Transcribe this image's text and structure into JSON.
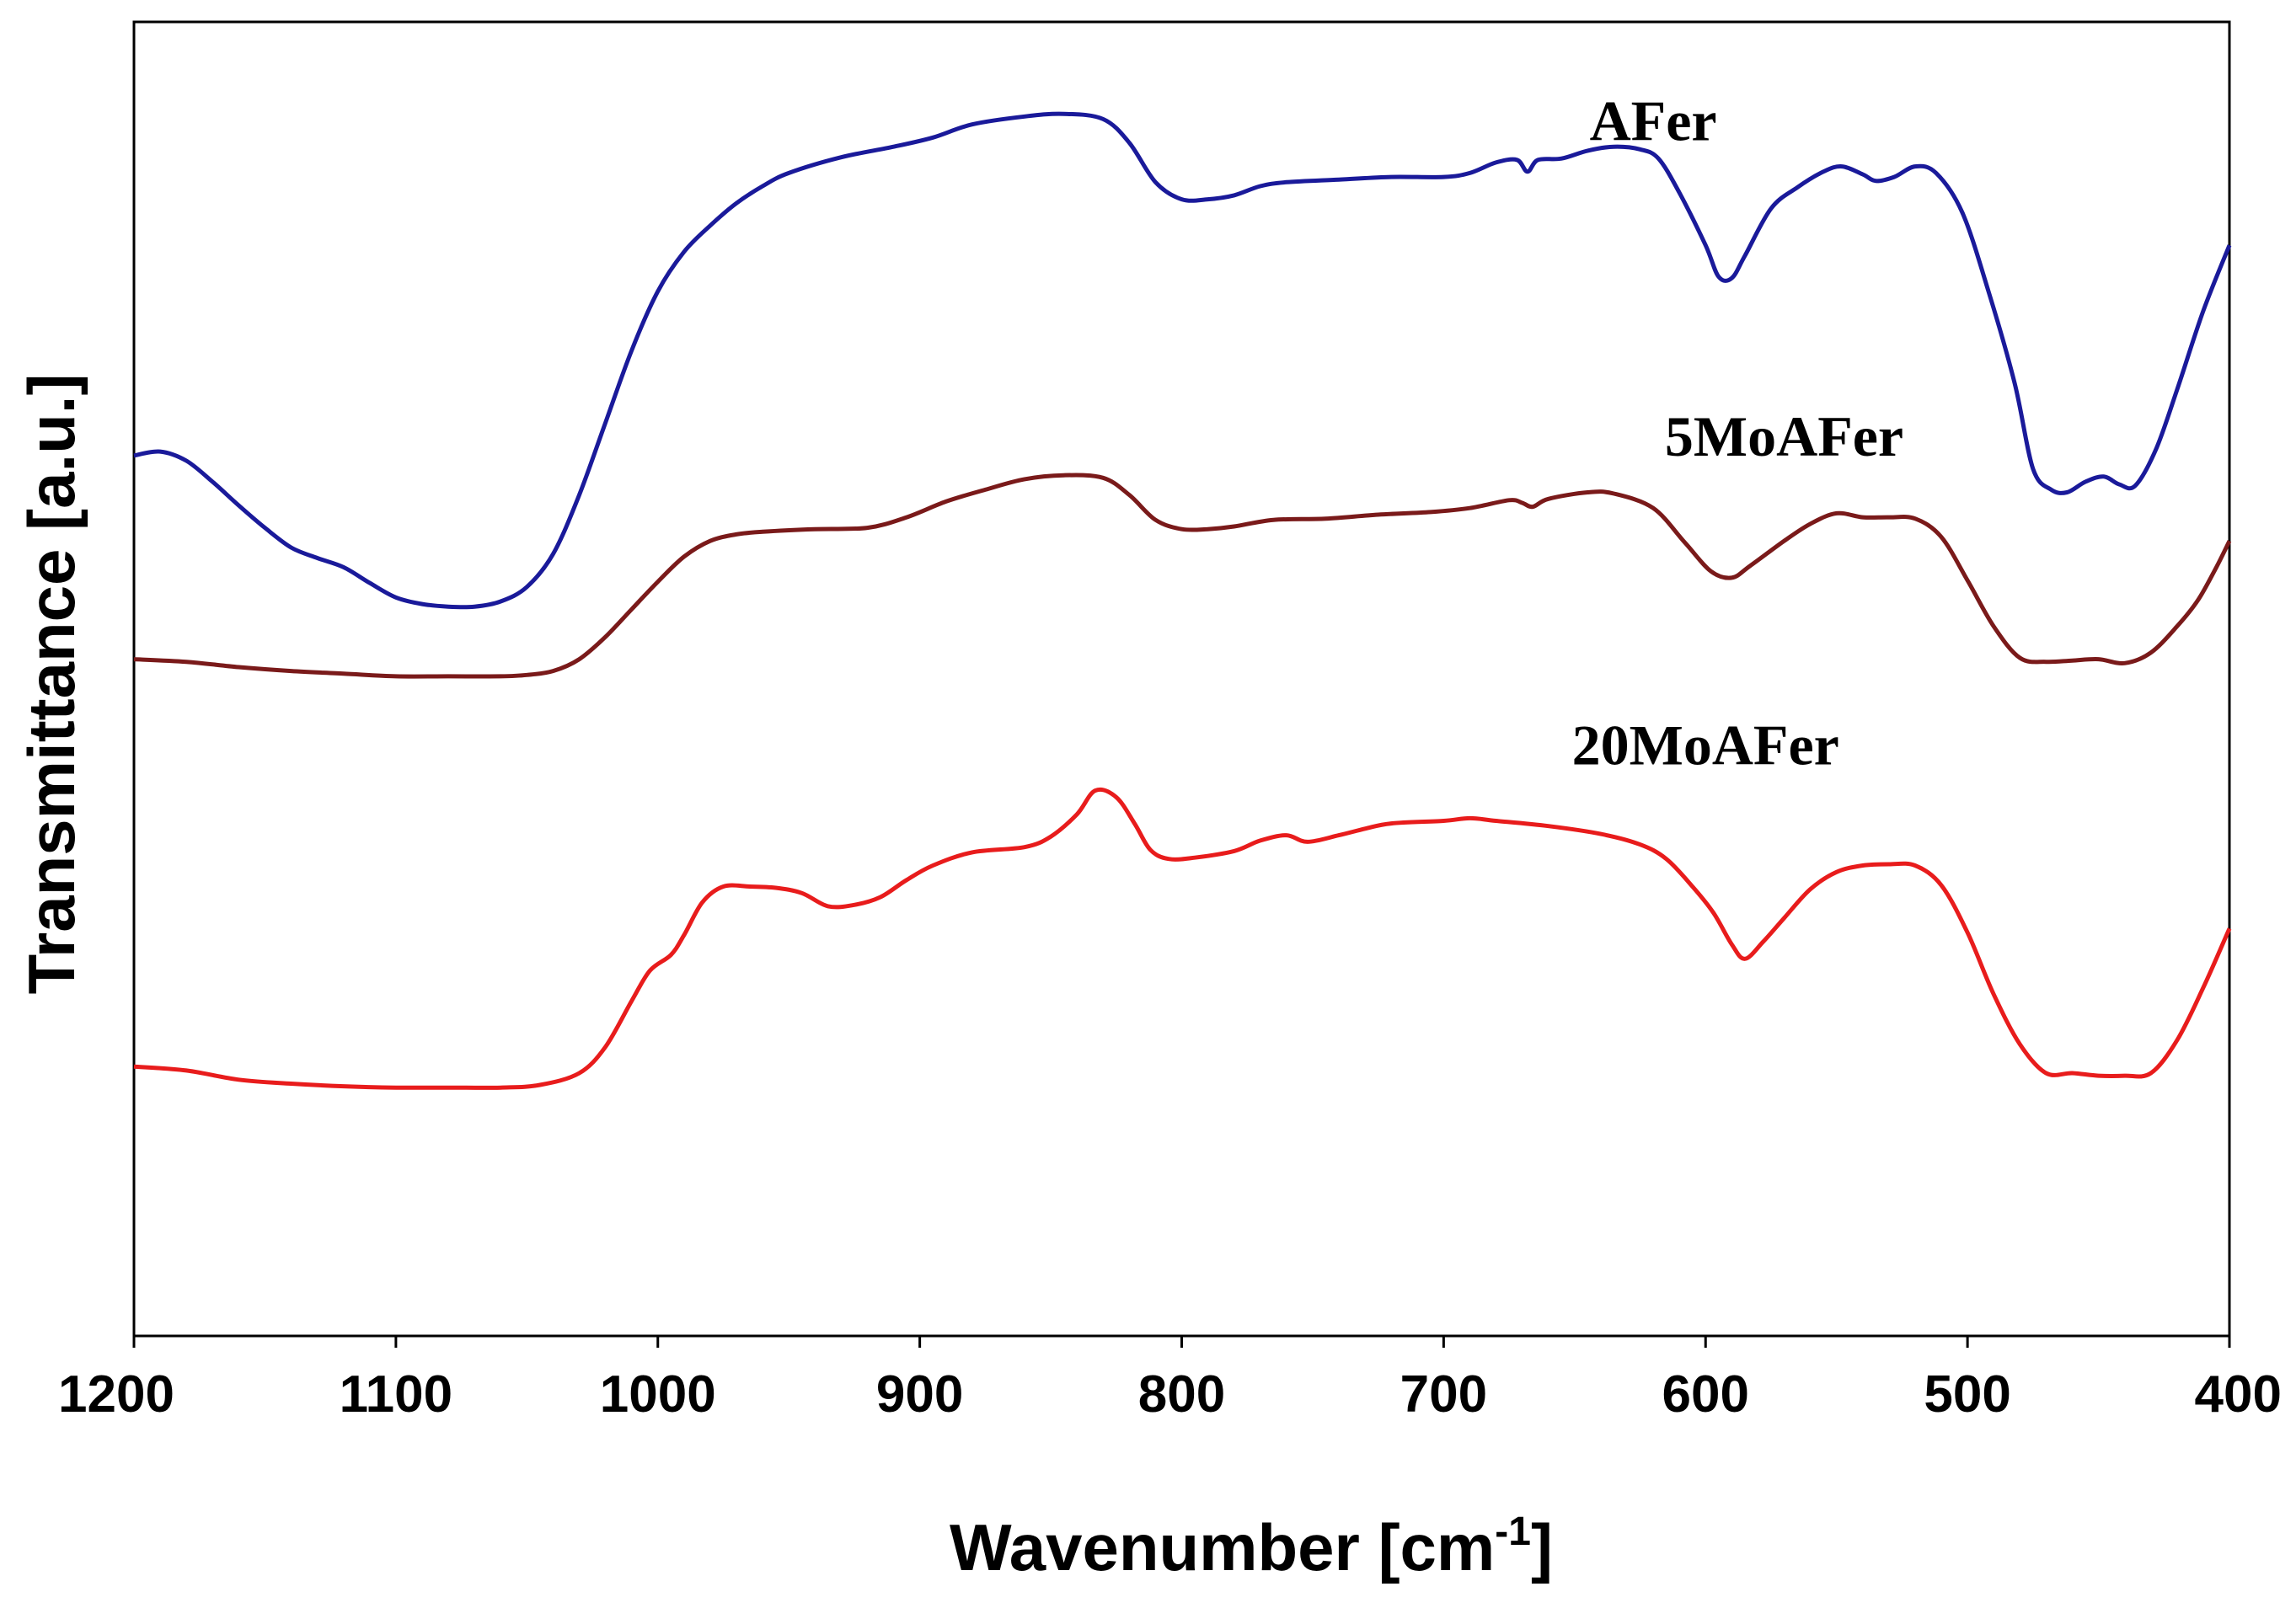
{
  "chart_data": {
    "type": "line",
    "title": "",
    "xlabel": "Wavenumber [cm",
    "xlabel_sup": "-1",
    "xlabel_close": "]",
    "ylabel": "Transmittance [a.u.]",
    "xlim": [
      1200,
      400
    ],
    "ylim": [
      0,
      100
    ],
    "x_reversed": true,
    "xticks": [
      1200,
      1100,
      1000,
      900,
      800,
      700,
      600,
      500,
      400
    ],
    "xtick_labels": [
      "1200",
      "1100",
      "1000",
      "900",
      "800",
      "700",
      "600",
      "500",
      "400"
    ],
    "yticks_shown": false,
    "grid": false,
    "legend": "none",
    "series": [
      {
        "name": "AFer",
        "color": "#1a1a9a",
        "label_at": [
          620,
          91
        ],
        "points": [
          [
            1200,
            67
          ],
          [
            1190,
            67.3
          ],
          [
            1180,
            66.6
          ],
          [
            1170,
            65
          ],
          [
            1160,
            63.2
          ],
          [
            1150,
            61.5
          ],
          [
            1140,
            60
          ],
          [
            1130,
            59.2
          ],
          [
            1120,
            58.5
          ],
          [
            1110,
            57.3
          ],
          [
            1100,
            56.2
          ],
          [
            1090,
            55.7
          ],
          [
            1080,
            55.5
          ],
          [
            1070,
            55.5
          ],
          [
            1060,
            55.9
          ],
          [
            1050,
            57
          ],
          [
            1040,
            59.5
          ],
          [
            1030,
            64
          ],
          [
            1020,
            69.5
          ],
          [
            1010,
            75
          ],
          [
            1000,
            79.5
          ],
          [
            990,
            82.5
          ],
          [
            980,
            84.5
          ],
          [
            970,
            86.2
          ],
          [
            960,
            87.5
          ],
          [
            950,
            88.5
          ],
          [
            930,
            89.7
          ],
          [
            910,
            90.5
          ],
          [
            895,
            91.2
          ],
          [
            880,
            92.2
          ],
          [
            860,
            92.8
          ],
          [
            845,
            93
          ],
          [
            830,
            92.6
          ],
          [
            820,
            90.8
          ],
          [
            810,
            87.8
          ],
          [
            800,
            86.5
          ],
          [
            790,
            86.5
          ],
          [
            780,
            86.8
          ],
          [
            770,
            87.5
          ],
          [
            760,
            87.8
          ],
          [
            740,
            88
          ],
          [
            720,
            88.2
          ],
          [
            700,
            88.2
          ],
          [
            690,
            88.5
          ],
          [
            680,
            89.3
          ],
          [
            672,
            89.5
          ],
          [
            668,
            88.6
          ],
          [
            664,
            89.5
          ],
          [
            655,
            89.6
          ],
          [
            645,
            90.2
          ],
          [
            635,
            90.5
          ],
          [
            625,
            90.3
          ],
          [
            618,
            89.6
          ],
          [
            610,
            87
          ],
          [
            600,
            83
          ],
          [
            595,
            80.6
          ],
          [
            590,
            80.5
          ],
          [
            585,
            82.2
          ],
          [
            575,
            85.8
          ],
          [
            565,
            87.4
          ],
          [
            555,
            88.6
          ],
          [
            548,
            89
          ],
          [
            540,
            88.4
          ],
          [
            535,
            87.9
          ],
          [
            528,
            88.2
          ],
          [
            520,
            89
          ],
          [
            512,
            88.5
          ],
          [
            502,
            85.5
          ],
          [
            492,
            79.5
          ],
          [
            482,
            72.5
          ],
          [
            475,
            66
          ],
          [
            468,
            64.4
          ],
          [
            462,
            64.2
          ],
          [
            455,
            65
          ],
          [
            448,
            65.4
          ],
          [
            442,
            64.8
          ],
          [
            436,
            64.7
          ],
          [
            428,
            67.5
          ],
          [
            420,
            72
          ],
          [
            410,
            78
          ],
          [
            400,
            83
          ]
        ]
      },
      {
        "name": "5MoAFer",
        "color": "#7a1a1a",
        "label_at": [
          570,
          67
        ],
        "points": [
          [
            1200,
            51.5
          ],
          [
            1180,
            51.3
          ],
          [
            1160,
            50.9
          ],
          [
            1140,
            50.6
          ],
          [
            1120,
            50.4
          ],
          [
            1100,
            50.2
          ],
          [
            1080,
            50.2
          ],
          [
            1060,
            50.2
          ],
          [
            1050,
            50.3
          ],
          [
            1040,
            50.6
          ],
          [
            1030,
            51.5
          ],
          [
            1020,
            53.2
          ],
          [
            1010,
            55.3
          ],
          [
            1000,
            57.4
          ],
          [
            990,
            59.3
          ],
          [
            980,
            60.5
          ],
          [
            970,
            61
          ],
          [
            960,
            61.2
          ],
          [
            940,
            61.4
          ],
          [
            920,
            61.5
          ],
          [
            905,
            62.3
          ],
          [
            890,
            63.5
          ],
          [
            875,
            64.4
          ],
          [
            860,
            65.2
          ],
          [
            845,
            65.5
          ],
          [
            830,
            65.3
          ],
          [
            820,
            64
          ],
          [
            810,
            62.1
          ],
          [
            800,
            61.4
          ],
          [
            790,
            61.4
          ],
          [
            780,
            61.6
          ],
          [
            765,
            62.1
          ],
          [
            745,
            62.2
          ],
          [
            725,
            62.5
          ],
          [
            705,
            62.7
          ],
          [
            690,
            63
          ],
          [
            675,
            63.6
          ],
          [
            670,
            63.4
          ],
          [
            666,
            63.1
          ],
          [
            660,
            63.7
          ],
          [
            645,
            64.2
          ],
          [
            635,
            64.1
          ],
          [
            620,
            63
          ],
          [
            608,
            60.4
          ],
          [
            598,
            58.2
          ],
          [
            590,
            57.7
          ],
          [
            583,
            58.6
          ],
          [
            570,
            60.5
          ],
          [
            560,
            61.8
          ],
          [
            550,
            62.6
          ],
          [
            540,
            62.3
          ],
          [
            530,
            62.3
          ],
          [
            520,
            62.2
          ],
          [
            510,
            60.8
          ],
          [
            500,
            57.5
          ],
          [
            490,
            54
          ],
          [
            480,
            51.6
          ],
          [
            470,
            51.3
          ],
          [
            460,
            51.4
          ],
          [
            450,
            51.5
          ],
          [
            440,
            51.2
          ],
          [
            430,
            52
          ],
          [
            420,
            54
          ],
          [
            412,
            56
          ],
          [
            405,
            58.5
          ],
          [
            400,
            60.5
          ]
        ]
      },
      {
        "name": "20MoAFer",
        "color": "#e81c1c",
        "label_at": [
          600,
          43.5
        ],
        "points": [
          [
            1200,
            20.5
          ],
          [
            1180,
            20.2
          ],
          [
            1160,
            19.5
          ],
          [
            1140,
            19.2
          ],
          [
            1120,
            19
          ],
          [
            1100,
            18.9
          ],
          [
            1080,
            18.9
          ],
          [
            1060,
            18.9
          ],
          [
            1045,
            19.1
          ],
          [
            1030,
            20
          ],
          [
            1020,
            22
          ],
          [
            1010,
            25.5
          ],
          [
            1003,
            27.8
          ],
          [
            995,
            29
          ],
          [
            990,
            30.5
          ],
          [
            983,
            33
          ],
          [
            975,
            34.2
          ],
          [
            965,
            34.2
          ],
          [
            955,
            34.1
          ],
          [
            945,
            33.7
          ],
          [
            935,
            32.7
          ],
          [
            925,
            32.8
          ],
          [
            915,
            33.4
          ],
          [
            905,
            34.7
          ],
          [
            895,
            35.8
          ],
          [
            880,
            36.8
          ],
          [
            860,
            37.2
          ],
          [
            850,
            38
          ],
          [
            840,
            39.7
          ],
          [
            833,
            41.5
          ],
          [
            825,
            41
          ],
          [
            818,
            39
          ],
          [
            812,
            37
          ],
          [
            805,
            36.3
          ],
          [
            795,
            36.4
          ],
          [
            780,
            36.9
          ],
          [
            770,
            37.7
          ],
          [
            760,
            38.1
          ],
          [
            752,
            37.6
          ],
          [
            740,
            38.1
          ],
          [
            730,
            38.6
          ],
          [
            720,
            39
          ],
          [
            700,
            39.2
          ],
          [
            690,
            39.4
          ],
          [
            680,
            39.2
          ],
          [
            660,
            38.8
          ],
          [
            640,
            38.2
          ],
          [
            625,
            37.4
          ],
          [
            615,
            36.3
          ],
          [
            605,
            34.2
          ],
          [
            597,
            32.2
          ],
          [
            590,
            29.8
          ],
          [
            585,
            28.7
          ],
          [
            578,
            30
          ],
          [
            570,
            31.8
          ],
          [
            560,
            34
          ],
          [
            550,
            35.3
          ],
          [
            540,
            35.8
          ],
          [
            530,
            35.9
          ],
          [
            520,
            35.8
          ],
          [
            510,
            34.3
          ],
          [
            500,
            30.7
          ],
          [
            490,
            26
          ],
          [
            480,
            22.2
          ],
          [
            470,
            20
          ],
          [
            460,
            20
          ],
          [
            450,
            19.8
          ],
          [
            440,
            19.8
          ],
          [
            430,
            20
          ],
          [
            420,
            22.5
          ],
          [
            410,
            26.5
          ],
          [
            400,
            31
          ]
        ]
      }
    ]
  }
}
